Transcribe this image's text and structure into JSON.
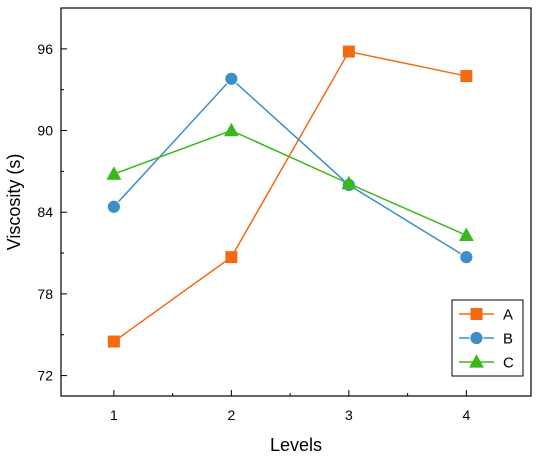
{
  "chart_data": {
    "type": "line",
    "title": "",
    "xlabel": "Levels",
    "ylabel": "Viscosity (s)",
    "x": [
      1,
      2,
      3,
      4
    ],
    "xlim": [
      0.55,
      4.55
    ],
    "ylim": [
      70.5,
      99
    ],
    "xticks": [
      "1",
      "2",
      "3",
      "4"
    ],
    "yticks": [
      "72",
      "78",
      "84",
      "90",
      "96"
    ],
    "ytick_values": [
      72,
      78,
      84,
      90,
      96
    ],
    "grid": false,
    "legend_position": "bottom-right",
    "series": [
      {
        "name": "A",
        "values": [
          74.5,
          80.7,
          95.8,
          94.0
        ],
        "color": "#f56a11",
        "marker": "square"
      },
      {
        "name": "B",
        "values": [
          84.4,
          93.8,
          86.0,
          80.7
        ],
        "color": "#3a8fc9",
        "marker": "circle"
      },
      {
        "name": "C",
        "values": [
          86.8,
          90.0,
          86.1,
          82.3
        ],
        "color": "#3db81c",
        "marker": "triangle"
      }
    ]
  }
}
